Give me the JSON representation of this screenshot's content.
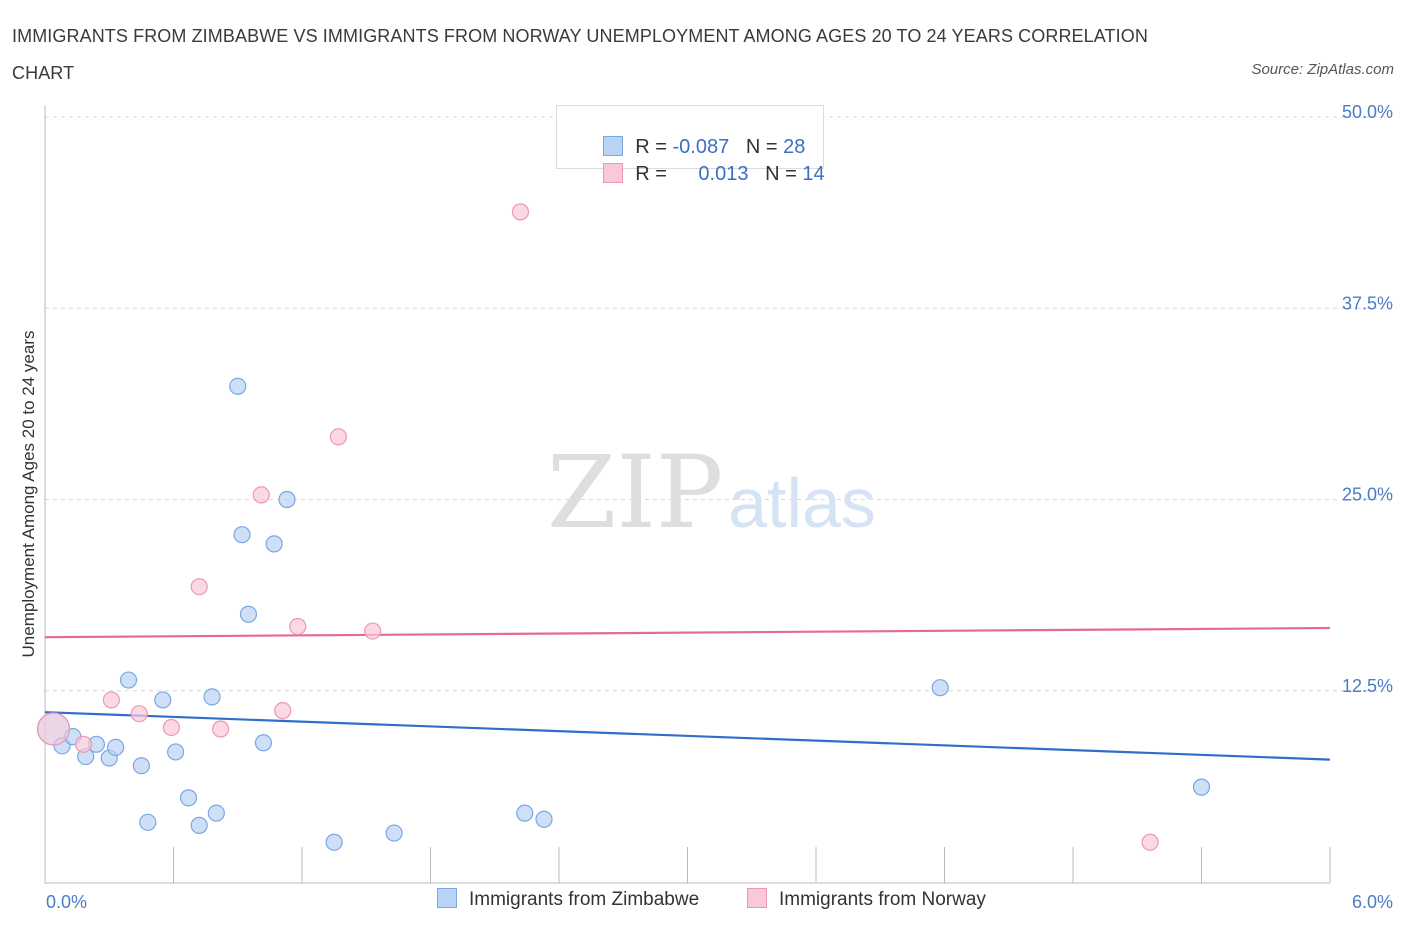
{
  "title": "IMMIGRANTS FROM ZIMBABWE VS IMMIGRANTS FROM NORWAY UNEMPLOYMENT AMONG AGES 20 TO 24 YEARS CORRELATION CHART",
  "source": "Source: ZipAtlas.com",
  "watermark": {
    "zip": "ZIP",
    "atlas": "atlas"
  },
  "legend_top": {
    "rows": [
      {
        "r_label": "R = ",
        "r_value": "-0.087",
        "n_label": "N = ",
        "n_value": "28"
      },
      {
        "r_label": "R = ",
        "r_value": "0.013",
        "n_label": "N = ",
        "n_value": "14"
      }
    ]
  },
  "legend_bottom": {
    "items": [
      {
        "label": "Immigrants from Zimbabwe"
      },
      {
        "label": "Immigrants from Norway"
      }
    ]
  },
  "colors": {
    "zimbabwe_fill": "#b9d3f5",
    "zimbabwe_stroke": "#7aa7e0",
    "zimbabwe_line": "#2f6fcb",
    "norway_fill": "#f9c9d8",
    "norway_stroke": "#ee97b3",
    "norway_line": "#e46b96",
    "axis_text": "#4a7cc4",
    "grid": "#d8d8d8"
  },
  "chart_data": {
    "type": "scatter",
    "title": "IMMIGRANTS FROM ZIMBABWE VS IMMIGRANTS FROM NORWAY UNEMPLOYMENT AMONG AGES 20 TO 24 YEARS CORRELATION CHART",
    "xlabel": "",
    "ylabel": "Unemployment Among Ages 20 to 24 years",
    "xlim": [
      0,
      6
    ],
    "ylim": [
      0,
      50
    ],
    "x_tick_labels": [
      "0.0%",
      "6.0%"
    ],
    "y_ticks": [
      12.5,
      25.0,
      37.5,
      50.0
    ],
    "y_tick_labels": [
      "12.5%",
      "25.0%",
      "37.5%",
      "50.0%"
    ],
    "grid": true,
    "series": [
      {
        "name": "Immigrants from Zimbabwe",
        "points": [
          {
            "x": 0.04,
            "y": 10.0,
            "big": true
          },
          {
            "x": 0.08,
            "y": 8.9
          },
          {
            "x": 0.13,
            "y": 9.5
          },
          {
            "x": 0.19,
            "y": 8.2
          },
          {
            "x": 0.24,
            "y": 9.0
          },
          {
            "x": 0.3,
            "y": 8.1
          },
          {
            "x": 0.33,
            "y": 8.8
          },
          {
            "x": 0.39,
            "y": 13.2
          },
          {
            "x": 0.45,
            "y": 7.6
          },
          {
            "x": 0.48,
            "y": 3.9
          },
          {
            "x": 0.55,
            "y": 11.9
          },
          {
            "x": 0.61,
            "y": 8.5
          },
          {
            "x": 0.67,
            "y": 5.5
          },
          {
            "x": 0.72,
            "y": 3.7
          },
          {
            "x": 0.78,
            "y": 12.1
          },
          {
            "x": 0.8,
            "y": 4.5
          },
          {
            "x": 0.9,
            "y": 32.4
          },
          {
            "x": 0.92,
            "y": 22.7
          },
          {
            "x": 0.95,
            "y": 17.5
          },
          {
            "x": 1.02,
            "y": 9.1
          },
          {
            "x": 1.07,
            "y": 22.1
          },
          {
            "x": 1.13,
            "y": 25.0
          },
          {
            "x": 1.35,
            "y": 2.6
          },
          {
            "x": 1.63,
            "y": 3.2
          },
          {
            "x": 2.24,
            "y": 4.5
          },
          {
            "x": 2.33,
            "y": 4.1
          },
          {
            "x": 4.18,
            "y": 12.7
          },
          {
            "x": 5.4,
            "y": 6.2
          }
        ],
        "trend": [
          {
            "x": 0,
            "y": 11.1
          },
          {
            "x": 6,
            "y": 8.0
          }
        ]
      },
      {
        "name": "Immigrants from Norway",
        "points": [
          {
            "x": 0.04,
            "y": 10.0,
            "big": true
          },
          {
            "x": 0.18,
            "y": 9.0
          },
          {
            "x": 0.31,
            "y": 11.9
          },
          {
            "x": 0.44,
            "y": 11.0
          },
          {
            "x": 0.59,
            "y": 10.1
          },
          {
            "x": 0.72,
            "y": 19.3
          },
          {
            "x": 0.82,
            "y": 10.0
          },
          {
            "x": 1.01,
            "y": 25.3
          },
          {
            "x": 1.11,
            "y": 11.2
          },
          {
            "x": 1.18,
            "y": 16.7
          },
          {
            "x": 1.37,
            "y": 29.1
          },
          {
            "x": 1.53,
            "y": 16.4
          },
          {
            "x": 2.22,
            "y": 43.8
          },
          {
            "x": 5.16,
            "y": 2.6
          }
        ],
        "trend": [
          {
            "x": 0,
            "y": 16.0
          },
          {
            "x": 6,
            "y": 16.6
          }
        ]
      }
    ]
  }
}
